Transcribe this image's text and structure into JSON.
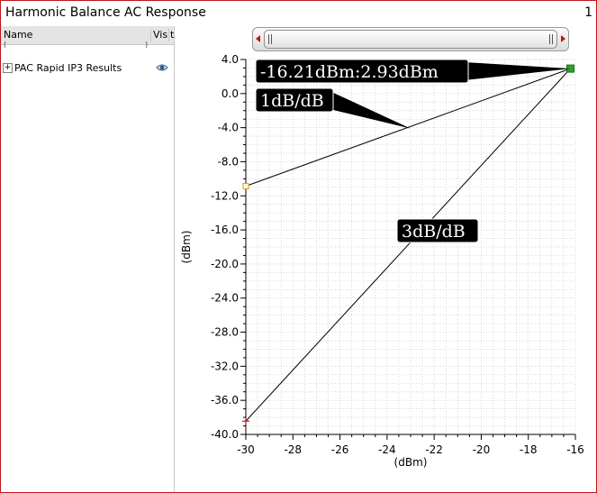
{
  "window": {
    "title": "Harmonic Balance AC Response",
    "number": "1",
    "border_color": "#c0151b"
  },
  "tree": {
    "columns": [
      "Name",
      "Vis",
      "t"
    ],
    "filter_left": "(",
    "filter_right": ")",
    "expander_symbol": "+",
    "items": [
      {
        "label": "PAC Rapid IP3 Results",
        "visibility_icon": "eye-icon"
      }
    ]
  },
  "scroll_bar": {
    "arrow_color": "#c0151b"
  },
  "chart_data": {
    "type": "line",
    "xlabel": "(dBm)",
    "ylabel": "(dBm)",
    "xlim": [
      -30,
      -16
    ],
    "ylim": [
      -40,
      4
    ],
    "x_ticks": [
      -30,
      -28,
      -26,
      -24,
      -22,
      -20,
      -18,
      -16
    ],
    "x_tick_labels": [
      "-30",
      "-28",
      "-26",
      "-24",
      "-22",
      "-20",
      "-18",
      "-16"
    ],
    "y_ticks": [
      4,
      0,
      -4,
      -8,
      -12,
      -16,
      -20,
      -24,
      -28,
      -32,
      -36,
      -40
    ],
    "y_tick_labels": [
      "4.0",
      "0.0",
      "-4.0",
      "-8.0",
      "-12.0",
      "-16.0",
      "-20.0",
      "-24.0",
      "-28.0",
      "-32.0",
      "-36.0",
      "-40.0"
    ],
    "grid": true,
    "series": [
      {
        "x": [
          -30,
          -16.21
        ],
        "y": [
          -10.86,
          2.93
        ],
        "color": "#000000",
        "start_marker": "square",
        "start_marker_color": "#d4a020"
      },
      {
        "x": [
          -30,
          -16.21
        ],
        "y": [
          -38.44,
          2.93
        ],
        "color": "#000000",
        "start_marker": "plus",
        "start_marker_color": "#c0151b"
      }
    ],
    "intercept": {
      "x": -16.21,
      "y": 2.93,
      "color": "#2ca02c"
    },
    "annotations": [
      {
        "text": "-16.21dBm:2.93dBm",
        "target_x": -16.21,
        "target_y": 2.93
      },
      {
        "text": "1dB/dB",
        "target_x": -23.0,
        "target_y": -4.1
      },
      {
        "text": "3dB/dB",
        "target_x": -23.0,
        "target_y": -17.1
      }
    ]
  }
}
